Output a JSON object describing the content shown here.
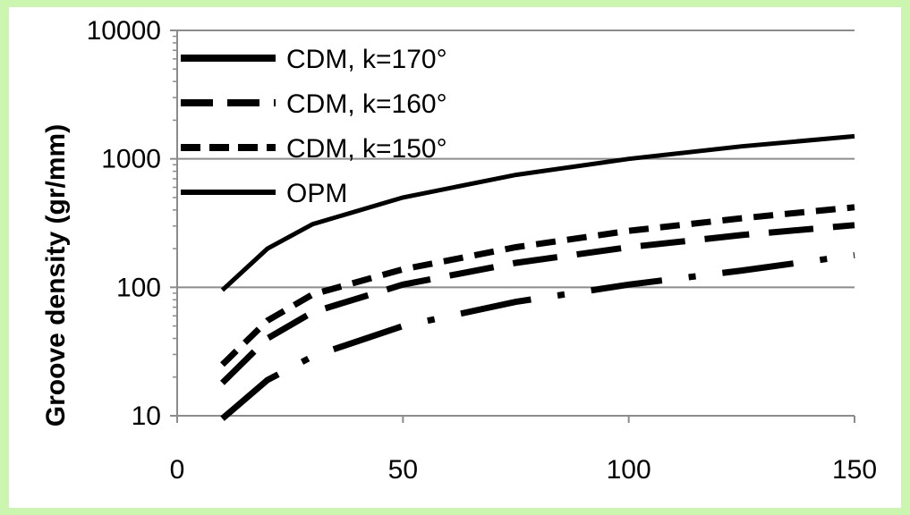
{
  "chart_data": {
    "type": "line",
    "title": "",
    "xlabel": "",
    "ylabel": "Groove density (gr/mm)",
    "xlim": [
      0,
      150
    ],
    "ylim": [
      10,
      10000
    ],
    "yscale": "log",
    "xticks": [
      "0",
      "50",
      "100",
      "150"
    ],
    "yticks": [
      "10",
      "100",
      "1000",
      "10000"
    ],
    "grid": "horizontal",
    "legend_position": "top-left",
    "series": [
      {
        "name": "CDM, k=170°",
        "style": "dash-dot",
        "x": [
          10,
          20,
          30,
          50,
          75,
          100,
          125,
          150
        ],
        "y": [
          9.5,
          19,
          29,
          50,
          77,
          105,
          135,
          178
        ]
      },
      {
        "name": "CDM, k=160°",
        "style": "long-dash",
        "x": [
          10,
          20,
          30,
          50,
          75,
          100,
          125,
          150
        ],
        "y": [
          18,
          40,
          64,
          105,
          155,
          205,
          255,
          305
        ]
      },
      {
        "name": "CDM, k=150°",
        "style": "short-dash",
        "x": [
          10,
          20,
          30,
          50,
          75,
          100,
          125,
          150
        ],
        "y": [
          25,
          55,
          88,
          138,
          205,
          275,
          345,
          420
        ]
      },
      {
        "name": "OPM",
        "style": "solid",
        "x": [
          10,
          20,
          30,
          50,
          75,
          100,
          125,
          150
        ],
        "y": [
          95,
          200,
          310,
          500,
          750,
          1000,
          1250,
          1500
        ]
      }
    ]
  }
}
